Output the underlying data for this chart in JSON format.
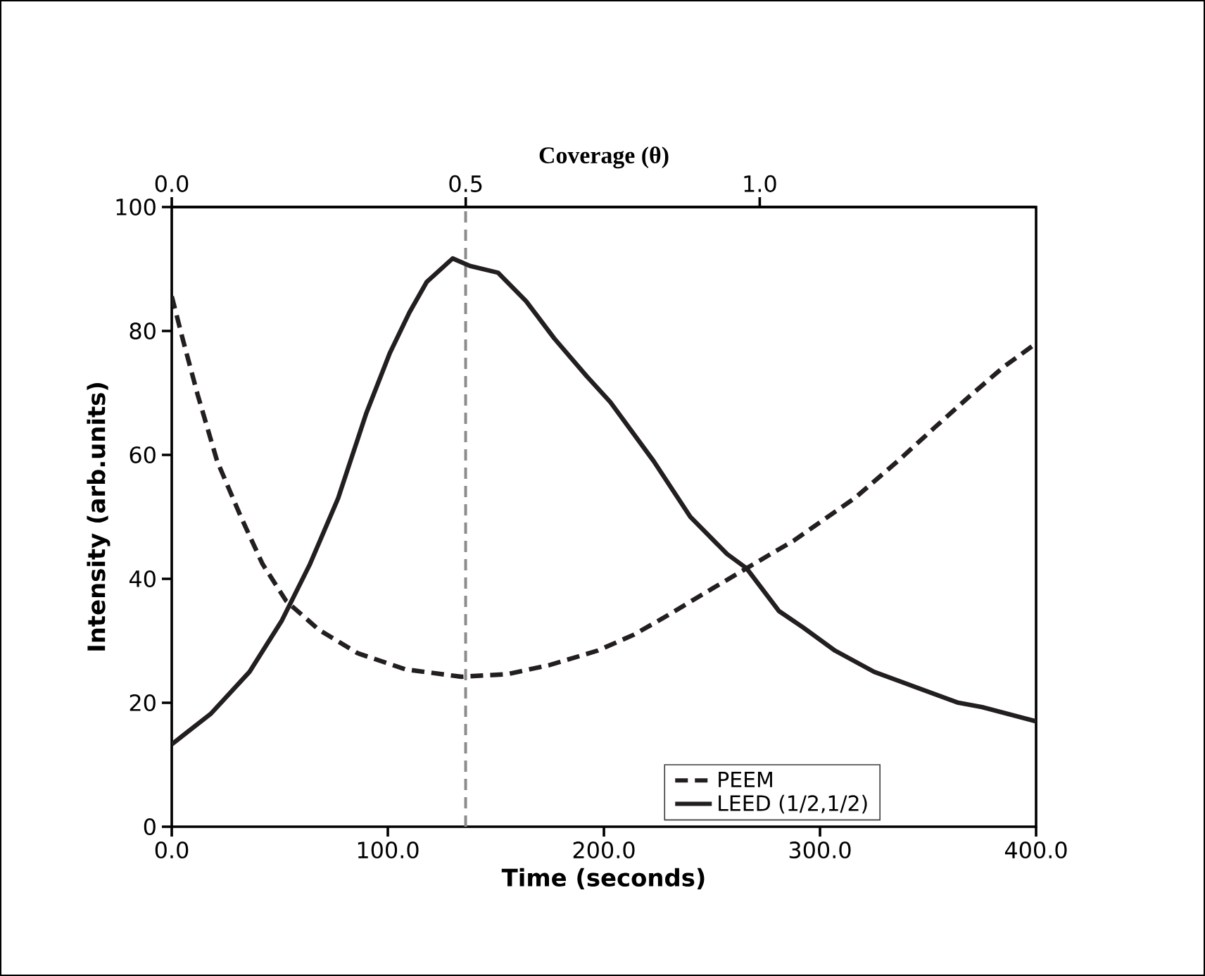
{
  "chart_data": {
    "type": "line",
    "xlabel": "Time (seconds)",
    "ylabel": "Intensity (arb.units)",
    "x2label": "Coverage (θ)",
    "xlim": [
      0,
      400
    ],
    "xticks": [
      {
        "value": 0,
        "label": "0.0"
      },
      {
        "value": 100,
        "label": "100.0"
      },
      {
        "value": 200,
        "label": "200.0"
      },
      {
        "value": 300,
        "label": "300.0"
      },
      {
        "value": 400,
        "label": "400.0"
      }
    ],
    "ylim": [
      0,
      100
    ],
    "yticks": [
      0,
      20,
      40,
      60,
      80,
      100
    ],
    "x2lim": [
      0,
      1.47
    ],
    "x2ticks": [
      {
        "value": 0,
        "label": "0.0"
      },
      {
        "value": 0.5,
        "label": "0.5"
      },
      {
        "value": 1,
        "label": "1.0"
      }
    ],
    "legend": "bottom right",
    "marker": "none",
    "ref_lines": [
      {
        "axis": "x",
        "value": 136,
        "color": "#8c8c8c",
        "line_style": "dashed"
      }
    ],
    "series": [
      {
        "name": "PEEM",
        "color": "#231f20",
        "line_style": "dashed",
        "x": [
          0,
          5,
          12,
          21,
          32,
          42,
          53,
          68,
          86,
          108,
          134,
          155,
          175,
          197,
          214,
          229,
          251,
          266,
          288,
          316,
          336,
          353,
          370,
          385,
          400
        ],
        "values": [
          85.6,
          78.8,
          69.7,
          59,
          50,
          42.4,
          36.4,
          31.8,
          28,
          25.4,
          24.2,
          24.6,
          26.1,
          28.4,
          31,
          34,
          38.6,
          41.7,
          46.2,
          53,
          59,
          64.4,
          69.7,
          74.2,
          78
        ]
      },
      {
        "name": "LEED (1/2,1/2)",
        "color": "#231f20",
        "line_style": "solid",
        "x": [
          0,
          18,
          36,
          51,
          64,
          77,
          90,
          101,
          110,
          118,
          130,
          138,
          151,
          164,
          177,
          192,
          203,
          223,
          240,
          257,
          266,
          281,
          292,
          307,
          325,
          346,
          364,
          375,
          400
        ],
        "values": [
          13.3,
          18.2,
          25,
          33.3,
          42.4,
          53,
          66.7,
          76.5,
          83,
          87.9,
          91.7,
          90.5,
          89.4,
          84.8,
          78.8,
          72.7,
          68.5,
          59,
          50,
          44,
          41.7,
          34.8,
          32.2,
          28.4,
          25,
          22.3,
          20,
          19.3,
          17
        ]
      }
    ]
  }
}
